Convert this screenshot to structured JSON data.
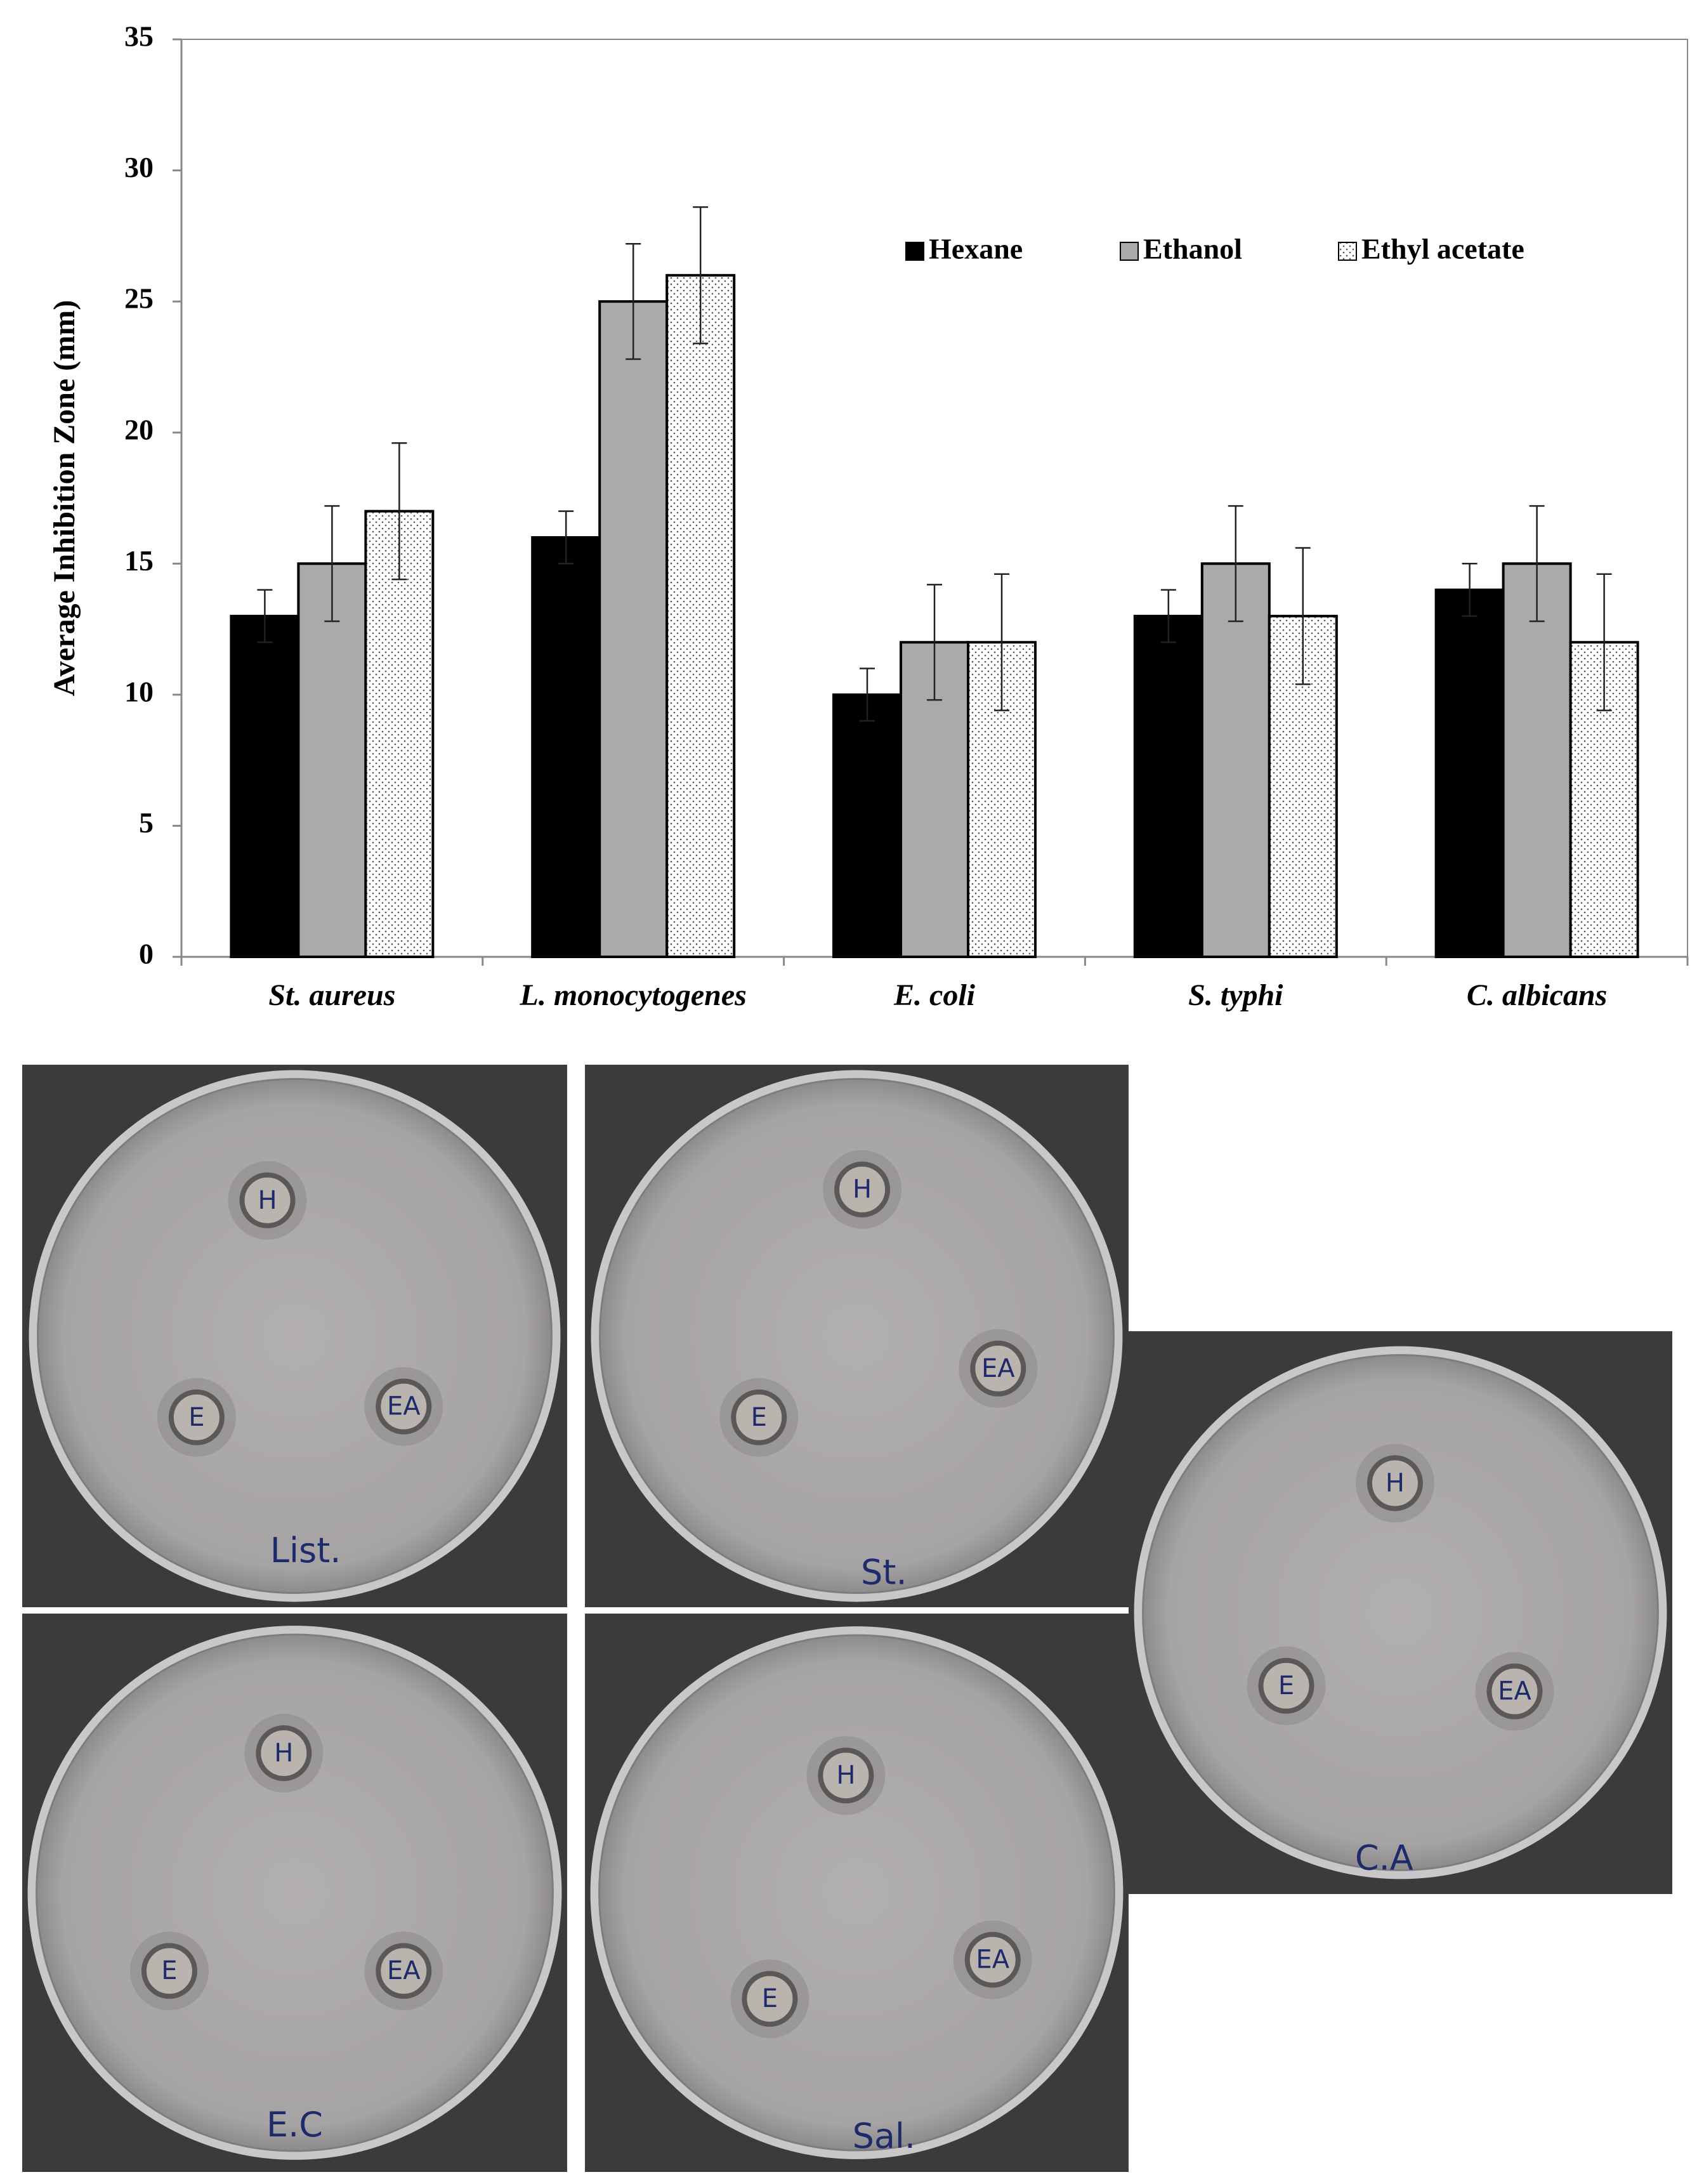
{
  "chart_data": {
    "type": "bar",
    "y_label": "Average Inhibition Zone (mm)",
    "categories": [
      "St. aureus",
      "L. monocytogenes",
      "E. coli",
      "S. typhi",
      "C. albicans"
    ],
    "series": [
      {
        "name": "Hexane",
        "color": "#000000",
        "values": [
          13,
          16,
          10,
          13,
          14
        ],
        "errors": [
          1,
          1,
          1,
          1,
          1
        ]
      },
      {
        "name": "Ethanol",
        "color": "#aaaaaa",
        "values": [
          15,
          25,
          12,
          15,
          15
        ],
        "errors": [
          2.2,
          2.2,
          2.2,
          2.2,
          2.2
        ]
      },
      {
        "name": "Ethyl acetate",
        "color": "#ffffff",
        "pattern": "dots",
        "values": [
          17,
          26,
          12,
          13,
          12
        ],
        "errors": [
          2.6,
          2.6,
          2.6,
          2.6,
          2.6
        ]
      }
    ],
    "ylim": [
      0,
      35
    ],
    "yticks": [
      0,
      5,
      10,
      15,
      20,
      25,
      30,
      35
    ],
    "grid": false
  },
  "plates": [
    {
      "label": "List.",
      "wells": [
        "H",
        "E",
        "EA"
      ]
    },
    {
      "label": "St.",
      "wells": [
        "H",
        "E",
        "EA"
      ]
    },
    {
      "label": "C.A",
      "wells": [
        "H",
        "E",
        "EA"
      ]
    },
    {
      "label": "E.C",
      "wells": [
        "H",
        "E",
        "EA"
      ]
    },
    {
      "label": "Sal.",
      "wells": [
        "H",
        "E",
        "EA"
      ]
    }
  ]
}
